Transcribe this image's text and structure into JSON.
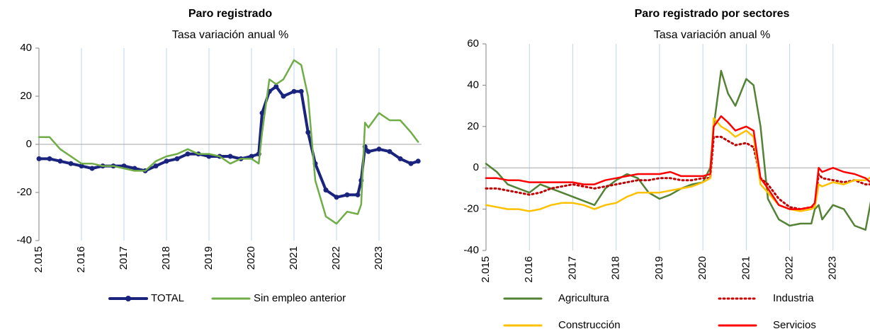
{
  "chart_data": [
    {
      "type": "line",
      "title": "Paro registrado",
      "subtitle": "Tasa variación anual %",
      "x": [
        2015,
        2015.25,
        2015.5,
        2015.75,
        2016,
        2016.25,
        2016.5,
        2016.75,
        2017,
        2017.25,
        2017.5,
        2017.75,
        2018,
        2018.25,
        2018.5,
        2018.75,
        2019,
        2019.25,
        2019.5,
        2019.75,
        2020,
        2020.17,
        2020.25,
        2020.42,
        2020.58,
        2020.75,
        2021,
        2021.17,
        2021.33,
        2021.5,
        2021.75,
        2022,
        2022.25,
        2022.5,
        2022.58,
        2022.67,
        2022.75,
        2023,
        2023.25,
        2023.5,
        2023.75,
        2023.92
      ],
      "series": [
        {
          "name": "TOTAL",
          "color": "#1a237e",
          "markers": true,
          "values": [
            -6,
            -6,
            -7,
            -8,
            -9,
            -10,
            -9,
            -9,
            -9,
            -10,
            -11,
            -9,
            -7,
            -6,
            -4,
            -4,
            -5,
            -5,
            -5,
            -6,
            -5,
            -4,
            13,
            22,
            24,
            20,
            22,
            22,
            5,
            -8,
            -19,
            -22,
            -21,
            -21,
            -15,
            -1,
            -3,
            -2,
            -3,
            -6,
            -8,
            -7
          ]
        },
        {
          "name": "Sin empleo anterior",
          "color": "#70ad47",
          "values": [
            3,
            3,
            -2,
            -5,
            -8,
            -8,
            -9,
            -9,
            -10,
            -11,
            -11,
            -7,
            -5,
            -4,
            -2,
            -4,
            -4,
            -5,
            -8,
            -6,
            -6,
            -8,
            5,
            27,
            25,
            27,
            35,
            33,
            20,
            -15,
            -30,
            -33,
            -28,
            -29,
            -25,
            9,
            7,
            13,
            10,
            10,
            5,
            1
          ]
        }
      ],
      "xlim": [
        2015,
        2024
      ],
      "xticks": [
        {
          "value": 2015,
          "label": "2.015"
        },
        {
          "value": 2016,
          "label": "2.016"
        },
        2017,
        2018,
        2019,
        2020,
        2021,
        2022,
        2023
      ],
      "ylim": [
        -40,
        40
      ],
      "yticks": [
        -40,
        -20,
        0,
        20,
        40
      ],
      "grid": true
    },
    {
      "type": "line",
      "title": "Paro registrado por sectores",
      "subtitle": "Tasa variación anual %",
      "x": [
        2015,
        2015.25,
        2015.5,
        2015.75,
        2016,
        2016.25,
        2016.5,
        2016.75,
        2017,
        2017.25,
        2017.5,
        2017.75,
        2018,
        2018.25,
        2018.5,
        2018.75,
        2019,
        2019.25,
        2019.5,
        2019.75,
        2020,
        2020.17,
        2020.25,
        2020.42,
        2020.58,
        2020.75,
        2021,
        2021.17,
        2021.33,
        2021.5,
        2021.75,
        2022,
        2022.25,
        2022.5,
        2022.58,
        2022.67,
        2022.75,
        2023,
        2023.25,
        2023.5,
        2023.75,
        2023.92
      ],
      "series": [
        {
          "name": "Agricultura",
          "color": "#548235",
          "values": [
            2,
            -2,
            -8,
            -10,
            -12,
            -8,
            -10,
            -12,
            -14,
            -16,
            -18,
            -10,
            -6,
            -3,
            -5,
            -12,
            -15,
            -13,
            -10,
            -8,
            -7,
            0,
            20,
            47,
            36,
            30,
            43,
            40,
            20,
            -15,
            -25,
            -28,
            -27,
            -27,
            -20,
            -18,
            -25,
            -18,
            -20,
            -28,
            -30,
            -11
          ]
        },
        {
          "name": "Industria",
          "color": "#c00000",
          "dotted": true,
          "values": [
            -10,
            -10,
            -11,
            -12,
            -13,
            -12,
            -10,
            -9,
            -8,
            -9,
            -10,
            -9,
            -8,
            -7,
            -6,
            -6,
            -5,
            -5,
            -6,
            -6,
            -5,
            -5,
            15,
            15,
            13,
            11,
            12,
            10,
            -5,
            -8,
            -15,
            -19,
            -20,
            -19,
            -18,
            -3,
            -5,
            -6,
            -7,
            -6,
            -8,
            -8
          ]
        },
        {
          "name": "Construcción",
          "color": "#ffc000",
          "values": [
            -18,
            -19,
            -20,
            -20,
            -21,
            -20,
            -18,
            -17,
            -17,
            -18,
            -20,
            -18,
            -17,
            -14,
            -12,
            -12,
            -12,
            -11,
            -10,
            -9,
            -7,
            -5,
            24,
            20,
            18,
            15,
            18,
            15,
            -8,
            -12,
            -18,
            -20,
            -21,
            -20,
            -19,
            -8,
            -9,
            -7,
            -8,
            -6,
            -6,
            -4
          ]
        },
        {
          "name": "Servicios",
          "color": "#ff0000",
          "values": [
            -5,
            -5,
            -6,
            -6,
            -7,
            -7,
            -7,
            -7,
            -7,
            -8,
            -8,
            -6,
            -5,
            -4,
            -3,
            -3,
            -3,
            -2,
            -4,
            -4,
            -4,
            -3,
            20,
            25,
            22,
            18,
            20,
            18,
            -5,
            -10,
            -18,
            -20,
            -20,
            -19,
            -17,
            0,
            -2,
            0,
            -2,
            -3,
            -5,
            -8
          ]
        }
      ],
      "xlim": [
        2015,
        2024
      ],
      "xticks": [
        {
          "value": 2015,
          "label": "2.015"
        },
        {
          "value": 2016,
          "label": "2.016"
        },
        2017,
        2018,
        2019,
        2020,
        2021,
        2022,
        2023
      ],
      "ylim": [
        -40,
        60
      ],
      "yticks": [
        -40,
        -20,
        0,
        20,
        40,
        60
      ],
      "grid": true
    }
  ]
}
